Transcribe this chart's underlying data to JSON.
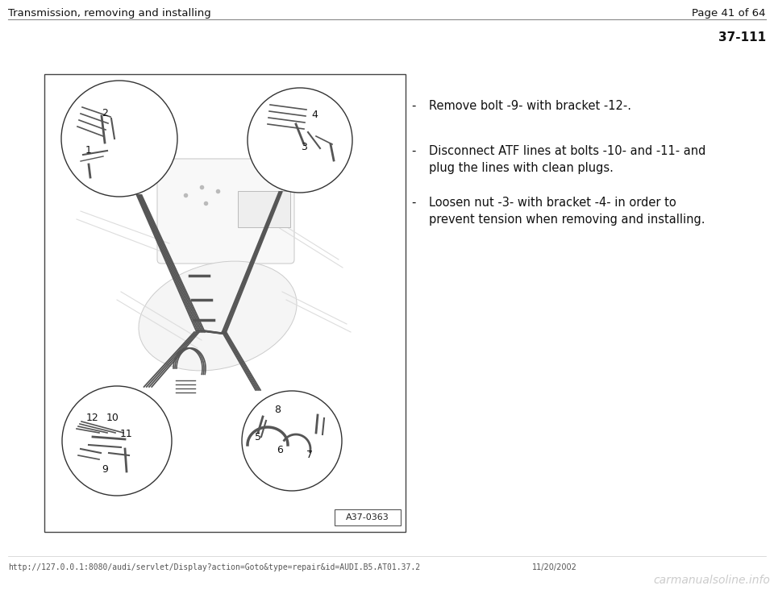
{
  "bg_color": "#ffffff",
  "header_left": "Transmission, removing and installing",
  "header_right": "Page 41 of 64",
  "section_number": "37-111",
  "bullet_points": [
    "Remove bolt -9- with bracket -12-.",
    "Disconnect ATF lines at bolts -10- and -11- and\nplug the lines with clean plugs.",
    "Loosen nut -3- with bracket -4- in order to\nprevent tension when removing and installing."
  ],
  "footer_url": "http://127.0.0.1:8080/audi/servlet/Display?action=Goto&type=repair&id=AUDI.B5.AT01.37.2",
  "footer_date": "11/20/2002",
  "footer_watermark": "carmanualsoline.info",
  "diagram_label": "A37-0363",
  "diagram_bg": "#ffffff",
  "line_color": "#333333",
  "light_line_color": "#aaaaaa"
}
